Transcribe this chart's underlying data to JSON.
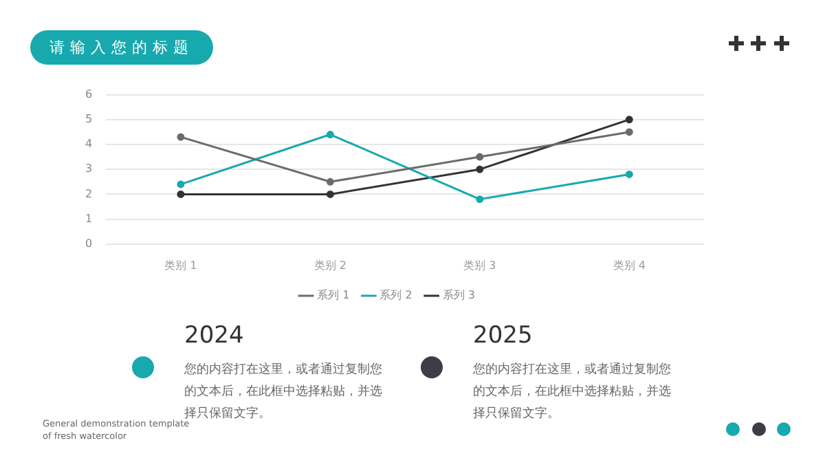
{
  "chart_data": {
    "type": "line",
    "title": "请输入您的标题",
    "categories": [
      "类别 1",
      "类别 2",
      "类别 3",
      "类别 4"
    ],
    "series": [
      {
        "name": "系列 1",
        "color": "#6b6b6b",
        "values": [
          4.3,
          2.5,
          3.5,
          4.5
        ]
      },
      {
        "name": "系列 2",
        "color": "#17a9ae",
        "values": [
          2.4,
          4.4,
          1.8,
          2.8
        ]
      },
      {
        "name": "系列 3",
        "color": "#333333",
        "values": [
          2,
          2,
          3,
          5
        ]
      }
    ],
    "ylim": [
      0,
      6
    ],
    "yticks": [
      0,
      1,
      2,
      3,
      4,
      5,
      6
    ],
    "grid": "y",
    "legend": "bottom",
    "marker": "circle",
    "line_style": "solid",
    "annotations": [
      "2024",
      "您的内容打在这里，或者通过复制您的文本后，在此框中选择粘贴，并选择只保留文字。",
      "2025",
      "您的内容打在这里，或者通过复制您的文本后，在此框中选择粘贴，并选择只保留文字。",
      "General demonstration template of fresh watercolor"
    ]
  }
}
